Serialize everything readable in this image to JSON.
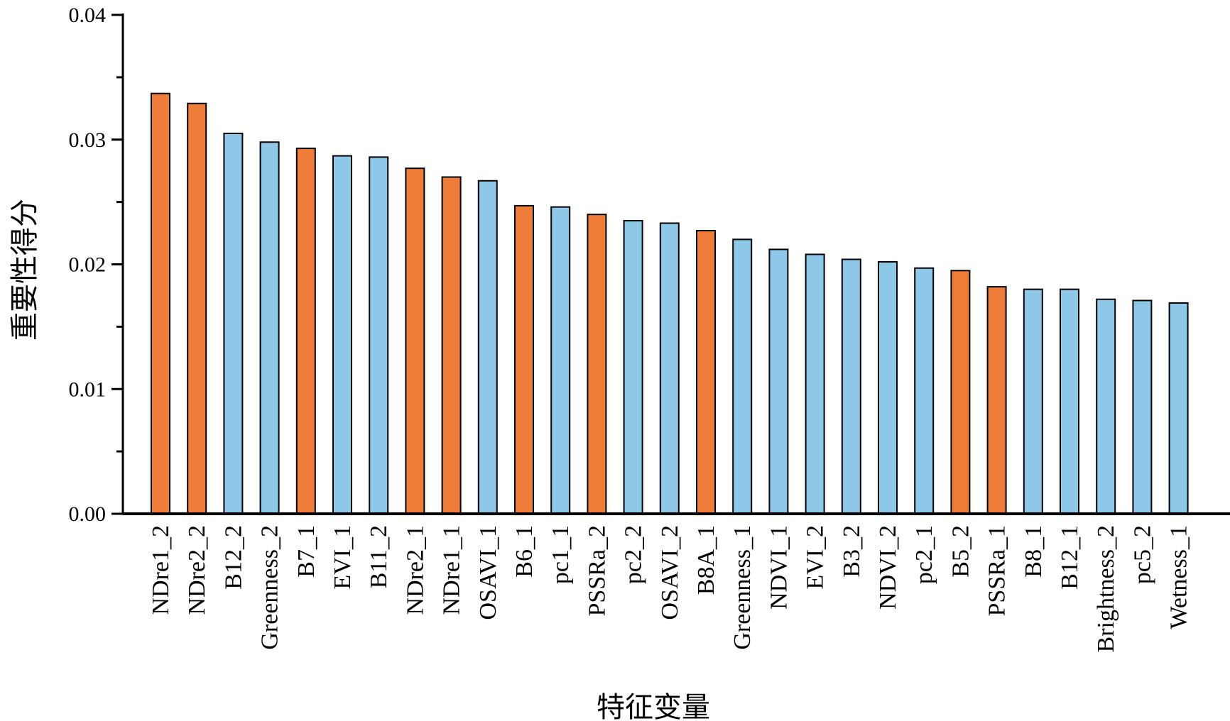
{
  "chart_data": {
    "type": "bar",
    "title": "",
    "xlabel": "特征变量",
    "ylabel": "重要性得分",
    "ylim": [
      0,
      0.04
    ],
    "yticks": [
      "0.00",
      "0.01",
      "0.02",
      "0.03",
      "0.04"
    ],
    "yticks_values": [
      0,
      0.01,
      0.02,
      0.03,
      0.04
    ],
    "grid": false,
    "legend": "none",
    "colors": {
      "orange": "#F07C3A",
      "blue": "#8DC8E8",
      "stroke": "#000000"
    },
    "categories": [
      "NDre1_2",
      "NDre2_2",
      "B12_2",
      "Greenness_2",
      "B7_1",
      "EVI_1",
      "B11_2",
      "NDre2_1",
      "NDre1_1",
      "OSAVI_1",
      "B6_1",
      "pc1_1",
      "PSSRa_2",
      "pc2_2",
      "OSAVI_2",
      "B8A_1",
      "Greenness_1",
      "NDVI_1",
      "EVI_2",
      "B3_2",
      "NDVI_2",
      "pc2_1",
      "B5_2",
      "PSSRa_1",
      "B8_1",
      "B12_1",
      "Brightness_2",
      "pc5_2",
      "Wetness_1"
    ],
    "values": [
      0.0337,
      0.0329,
      0.0305,
      0.0298,
      0.0293,
      0.0287,
      0.0286,
      0.0277,
      0.027,
      0.0267,
      0.0247,
      0.0246,
      0.024,
      0.0235,
      0.0233,
      0.0227,
      0.022,
      0.0212,
      0.0208,
      0.0204,
      0.0202,
      0.0197,
      0.0195,
      0.0182,
      0.018,
      0.018,
      0.0172,
      0.0171,
      0.0169
    ],
    "bar_colors": [
      "orange",
      "orange",
      "blue",
      "blue",
      "orange",
      "blue",
      "blue",
      "orange",
      "orange",
      "blue",
      "orange",
      "blue",
      "orange",
      "blue",
      "blue",
      "orange",
      "blue",
      "blue",
      "blue",
      "blue",
      "blue",
      "blue",
      "orange",
      "orange",
      "blue",
      "blue",
      "blue",
      "blue",
      "blue"
    ]
  }
}
